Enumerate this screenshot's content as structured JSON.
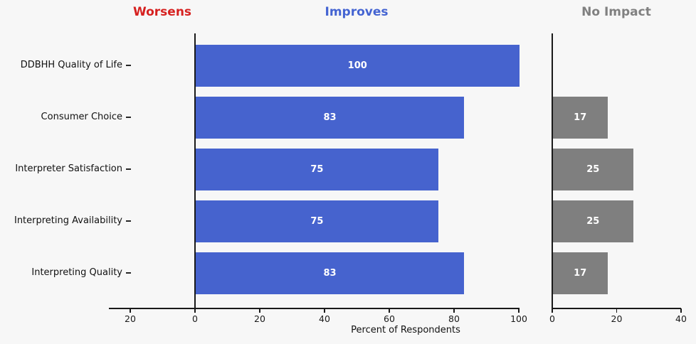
{
  "page": {
    "background": "#f7f7f7"
  },
  "headers": [
    {
      "label": "Worsens",
      "color": "#d62120"
    },
    {
      "label": "Improves",
      "color": "#4464d2"
    },
    {
      "label": "No Impact",
      "color": "#808080"
    }
  ],
  "chart_data": {
    "type": "bar",
    "orientation": "horizontal",
    "title": "",
    "xlabel": "Percent of Respondents",
    "categories": [
      "DDBHH Quality of Life",
      "Consumer Choice",
      "Interpreter Satisfaction",
      "Interpreting Availability",
      "Interpreting Quality"
    ],
    "series": [
      {
        "name": "Worsens",
        "panel": "main",
        "direction": "left",
        "color": "#d62728",
        "values": [
          0,
          0,
          0,
          0,
          0
        ]
      },
      {
        "name": "Improves",
        "panel": "main",
        "direction": "right",
        "color": "#4663ce",
        "values": [
          100,
          83,
          75,
          75,
          83
        ]
      },
      {
        "name": "No Impact",
        "panel": "right",
        "direction": "right",
        "color": "#7f7f7f",
        "values": [
          0,
          17,
          25,
          25,
          17
        ]
      }
    ],
    "value_labels_shown": true,
    "main_axis": {
      "xlim": [
        -26.6,
        100
      ],
      "ticks": [
        -20,
        0,
        20,
        40,
        60,
        80,
        100
      ],
      "tick_labels": [
        "20",
        "0",
        "20",
        "40",
        "60",
        "80",
        "100"
      ]
    },
    "right_axis": {
      "xlim": [
        0,
        40
      ],
      "ticks": [
        0,
        20,
        40
      ],
      "tick_labels": [
        "0",
        "20",
        "40"
      ]
    },
    "grid": false,
    "legend": "none"
  }
}
